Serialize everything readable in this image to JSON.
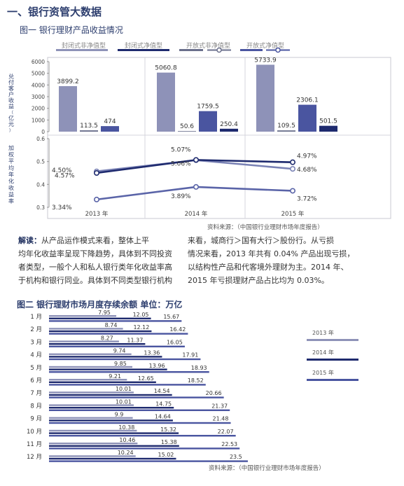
{
  "section_title": "一、银行资管大数据",
  "figure1": {
    "title": "图一  银行理财产品收益情况",
    "legend": [
      "封闭式非净值型",
      "封闭式净值型",
      "开放式非净值型",
      "开放式净值型"
    ],
    "source": "资料来源：（中国银行业理财市场年度报告）"
  },
  "figure2": {
    "title": "图二  银行理财市场月度存续余额  单位：万亿",
    "source": "资料来源：（中国银行业理财市场年度报告）"
  },
  "commentary": {
    "label": "解读：",
    "left_lines": [
      "从产品运作模式来看，整体上平",
      "均年化收益率呈现下降趋势，具体到不同投资",
      "者类型，一般个人和私人银行类年化收益率高",
      "于机构和银行同业。具体到不同类型银行机构"
    ],
    "right_lines": [
      "来看，城商行＞国有大行＞股份行。从亏损",
      "情况来看，2013 年共有 0.04% 产品出现亏损，",
      "以结构性产品和代客境外理财为主。2014 年、",
      "2015 年亏损理财产品占比均为 0.03%。"
    ]
  },
  "colors": {
    "title": "#2d3e6e",
    "bar_light": "#8e92b8",
    "bar_mid": "#4a55a0",
    "bar_dark": "#1e2a6e",
    "bar_slate": "#6a6f8c",
    "line_2013": "#7a82b5",
    "line_2014": "#1e2a6e",
    "line_2015": "#5a64a8"
  },
  "chart_data": [
    {
      "type": "bar",
      "ylabel": "兑付客户收益（亿元）",
      "ylim": [
        0,
        6000
      ],
      "yticks": [
        0,
        1000,
        2000,
        3000,
        4000,
        5000,
        6000
      ],
      "categories": [
        "2013 年",
        "2014 年",
        "2015 年"
      ],
      "series": [
        {
          "values": [
            3899.2,
            5060.8,
            5733.9
          ]
        },
        {
          "values": [
            113.5,
            50.6,
            109.5
          ]
        },
        {
          "values": [
            474,
            1759.5,
            2306.1
          ]
        },
        {
          "values": [
            null,
            250.4,
            501.5
          ]
        }
      ]
    },
    {
      "type": "line",
      "ylabel": "加权平均年化收益率",
      "ylim": [
        0.3,
        0.6
      ],
      "yticks": [
        0.3,
        0.4,
        0.5,
        0.6
      ],
      "categories": [
        "2013 年",
        "2014 年",
        "2015 年"
      ],
      "series": [
        {
          "values": [
            4.57,
            5.06,
            4.68
          ],
          "labels": [
            "4.57%",
            "5.06%",
            "4.68%"
          ]
        },
        {
          "values": [
            4.5,
            5.07,
            4.97
          ],
          "labels": [
            "4.50%",
            "5.07%",
            "4.97%"
          ]
        },
        {
          "values": [
            3.34,
            3.89,
            3.72
          ],
          "labels": [
            "3.34%",
            "3.89%",
            "3.72%"
          ]
        }
      ]
    },
    {
      "type": "bar",
      "orientation": "horizontal",
      "categories": [
        "1 月",
        "2 月",
        "3 月",
        "4 月",
        "5 月",
        "6 月",
        "7 月",
        "8 月",
        "9 月",
        "10 月",
        "11 月",
        "12 月"
      ],
      "xlim": [
        0,
        24
      ],
      "series": [
        {
          "name": "2013 年",
          "values": [
            7.95,
            8.74,
            8.27,
            9.74,
            9.85,
            9.21,
            10.01,
            10.01,
            9.9,
            10.38,
            10.46,
            10.24
          ]
        },
        {
          "name": "2014 年",
          "values": [
            12.05,
            12.12,
            11.37,
            13.36,
            13.96,
            12.65,
            14.54,
            14.75,
            14.64,
            15.32,
            15.38,
            15.02
          ]
        },
        {
          "name": "2015 年",
          "values": [
            15.67,
            16.42,
            16.05,
            17.91,
            18.93,
            18.52,
            20.66,
            21.37,
            21.48,
            22.07,
            22.53,
            23.5
          ]
        }
      ]
    }
  ]
}
